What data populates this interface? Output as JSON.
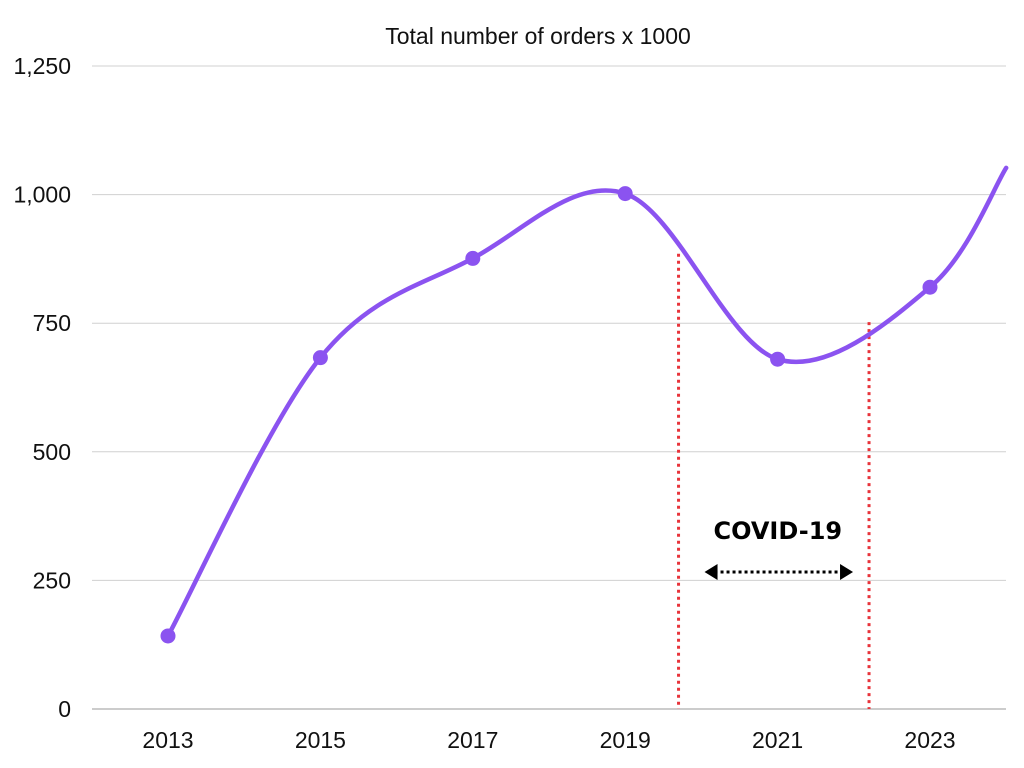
{
  "chart_data": {
    "type": "line",
    "title": "Total number of orders x 1000",
    "xlabel": "",
    "ylabel": "",
    "x": [
      "2013",
      "2015",
      "2017",
      "2019",
      "2021",
      "2023"
    ],
    "x_positions": [
      2013,
      2015,
      2017,
      2019,
      2021,
      2023
    ],
    "series": [
      {
        "values": [
          142,
          683,
          876,
          1002,
          680,
          820
        ],
        "trailing_point": {
          "x": 2024,
          "y": 1052
        },
        "color": "#8b53f0",
        "smooth": true,
        "markers": true
      }
    ],
    "ylim": [
      0,
      1250
    ],
    "xlim": [
      2012,
      2024
    ],
    "yticks": [
      0,
      250,
      500,
      750,
      1000,
      1250
    ],
    "ytick_labels": [
      "0",
      "250",
      "500",
      "750",
      "1,000",
      "1,250"
    ],
    "xtick_labels": [
      "2013",
      "2015",
      "2017",
      "2019",
      "2021",
      "2023"
    ],
    "grid": "horizontal",
    "grid_color": "#d0d0d0",
    "legend": "none",
    "annotations": {
      "covid_label": "COVID-19",
      "covid_start_year": 2019.7,
      "covid_end_year": 2022.2,
      "covid_start_line_top": 885,
      "covid_end_line_top": 752,
      "vline_color": "#e8333a",
      "arrow_color": "#000000"
    }
  }
}
